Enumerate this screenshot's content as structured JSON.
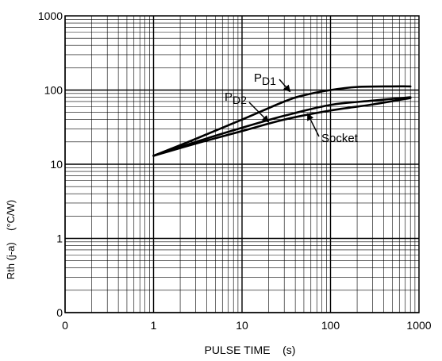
{
  "chart_data": {
    "type": "line",
    "title": "",
    "xlabel": "PULSE TIME    (s)",
    "ylabel": "Rth (j-a)    (°C/W)",
    "x_scale": "log",
    "y_scale": "log",
    "xlim": [
      0.1,
      1000
    ],
    "ylim": [
      0.1,
      1000
    ],
    "grid": true,
    "x_ticks": [
      {
        "value": 0.1,
        "label": "0"
      },
      {
        "value": 1,
        "label": "1"
      },
      {
        "value": 10,
        "label": "10"
      },
      {
        "value": 100,
        "label": "100"
      },
      {
        "value": 1000,
        "label": "1000"
      }
    ],
    "y_ticks": [
      {
        "value": 0.1,
        "label": "0"
      },
      {
        "value": 1,
        "label": "1"
      },
      {
        "value": 10,
        "label": "10"
      },
      {
        "value": 100,
        "label": "100"
      },
      {
        "value": 1000,
        "label": "1000"
      }
    ],
    "series": [
      {
        "name": "PD1",
        "label_main": "P",
        "label_sub": "D1",
        "x": [
          1,
          3,
          10,
          30,
          50,
          100,
          200,
          500,
          800
        ],
        "y": [
          13,
          22,
          40,
          70,
          85,
          100,
          110,
          112,
          112
        ]
      },
      {
        "name": "PD2",
        "label_main": "P",
        "label_sub": "D2",
        "x": [
          1,
          3,
          10,
          30,
          100,
          300,
          800
        ],
        "y": [
          13,
          20,
          31,
          45,
          63,
          72,
          80
        ]
      },
      {
        "name": "Socket",
        "label_main": "Socket",
        "label_sub": "",
        "x": [
          1,
          3,
          10,
          30,
          100,
          300,
          800
        ],
        "y": [
          13,
          19,
          28,
          40,
          53,
          64,
          78
        ]
      }
    ],
    "line_color": "#000000"
  }
}
